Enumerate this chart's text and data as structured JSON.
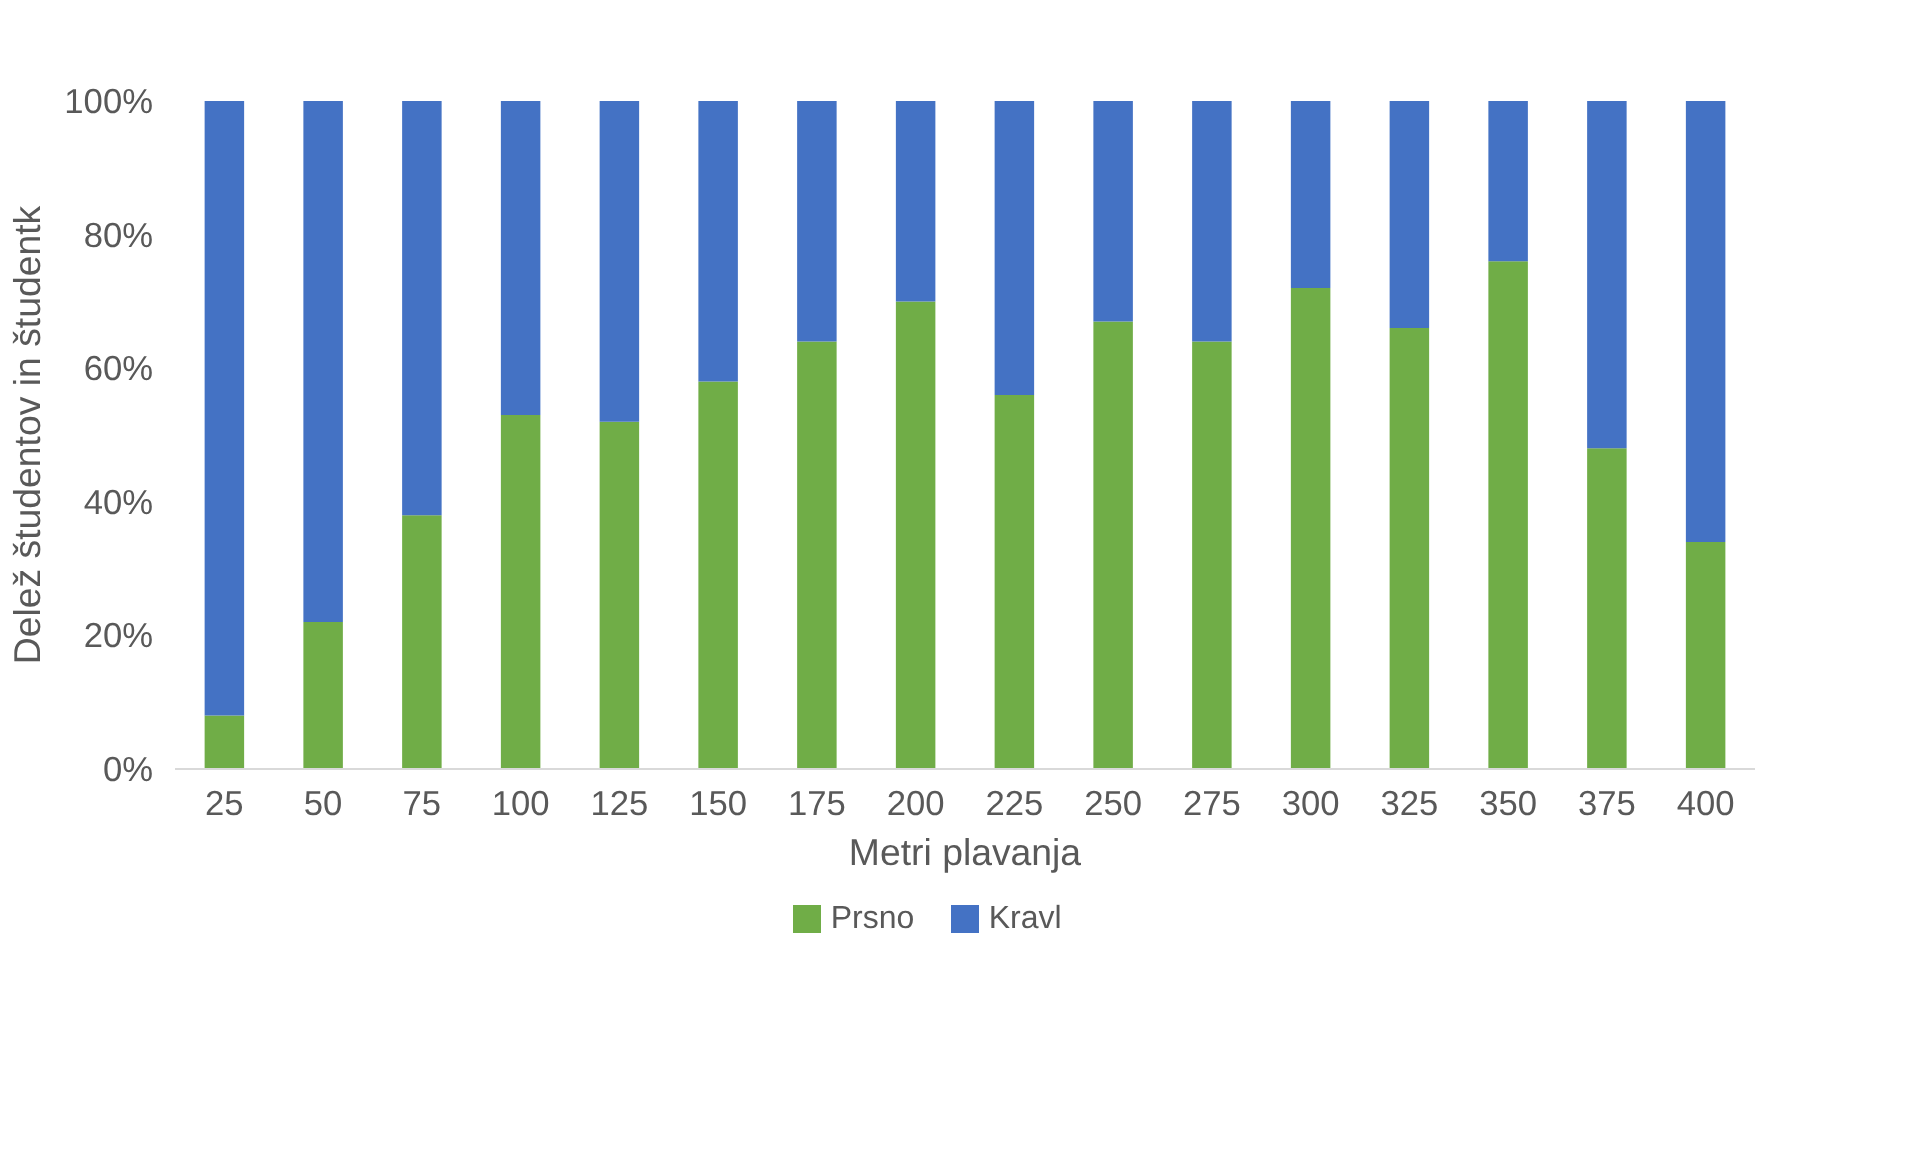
{
  "chart_data": {
    "type": "bar",
    "stacked": true,
    "xlabel": "Metri plavanja",
    "ylabel": "Delež študentov in študentk",
    "categories": [
      "25",
      "50",
      "75",
      "100",
      "125",
      "150",
      "175",
      "200",
      "225",
      "250",
      "275",
      "300",
      "325",
      "350",
      "375",
      "400"
    ],
    "series": [
      {
        "name": "Prsno",
        "color": "#70ad47",
        "values": [
          8,
          22,
          38,
          53,
          52,
          58,
          64,
          70,
          56,
          67,
          64,
          72,
          66,
          76,
          48,
          34
        ]
      },
      {
        "name": "Kravl",
        "color": "#4472c4",
        "values": [
          92,
          78,
          62,
          47,
          48,
          42,
          36,
          30,
          44,
          33,
          36,
          28,
          34,
          24,
          52,
          66
        ]
      }
    ],
    "ylim": [
      0,
      100
    ],
    "yticks": [
      {
        "value": 0,
        "label": "0%"
      },
      {
        "value": 20,
        "label": "20%"
      },
      {
        "value": 40,
        "label": "40%"
      },
      {
        "value": 60,
        "label": "60%"
      },
      {
        "value": 80,
        "label": "80%"
      },
      {
        "value": 100,
        "label": "100%"
      }
    ],
    "grid": false,
    "legend": "bottom"
  }
}
